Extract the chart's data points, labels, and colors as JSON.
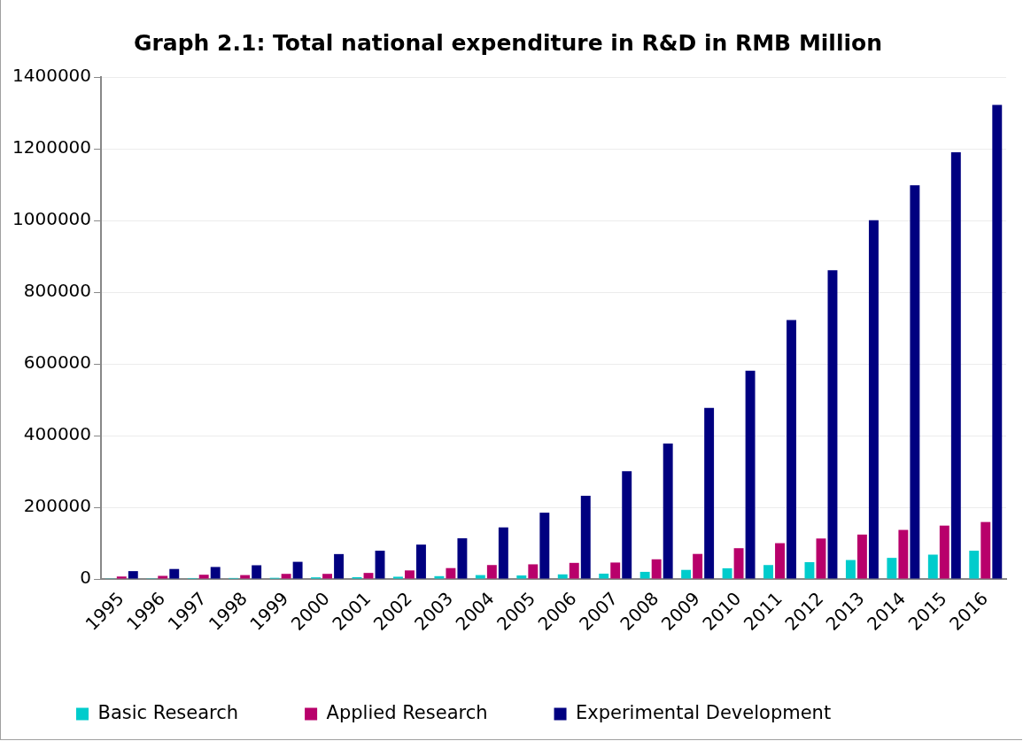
{
  "chart_data": {
    "type": "bar",
    "title": "Graph 2.1: Total national expenditure in R&D in RMB Million",
    "categories": [
      "1995",
      "1996",
      "1997",
      "1998",
      "1999",
      "2000",
      "2001",
      "2002",
      "2003",
      "2004",
      "2005",
      "2006",
      "2007",
      "2008",
      "2009",
      "2010",
      "2011",
      "2012",
      "2013",
      "2014",
      "2015",
      "2016"
    ],
    "series": [
      {
        "name": "Basic Research",
        "color": "#00cccc",
        "values": [
          1800,
          2000,
          2700,
          2900,
          3400,
          4700,
          5000,
          6400,
          8000,
          11000,
          10000,
          13000,
          15000,
          20000,
          25500,
          30000,
          39000,
          47000,
          53000,
          59000,
          68000,
          79000
        ]
      },
      {
        "name": "Applied Research",
        "color": "#b8006b",
        "values": [
          7000,
          8800,
          12000,
          11000,
          14400,
          14400,
          17000,
          24000,
          30500,
          39000,
          41000,
          45000,
          46000,
          55000,
          70000,
          86000,
          100000,
          113000,
          124000,
          137000,
          149000,
          159000
        ]
      },
      {
        "name": "Experimental Development",
        "color": "#000080",
        "values": [
          22000,
          28000,
          33600,
          38400,
          48000,
          69600,
          79000,
          96000,
          113600,
          144000,
          185000,
          232000,
          301000,
          378000,
          477000,
          581000,
          722000,
          861000,
          1000500,
          1098000,
          1190000,
          1322000
        ]
      }
    ],
    "ylim": [
      0,
      1400000
    ],
    "yticks": [
      0,
      200000,
      400000,
      600000,
      800000,
      1000000,
      1200000,
      1400000
    ],
    "grid": "y",
    "legend": "bottom"
  }
}
